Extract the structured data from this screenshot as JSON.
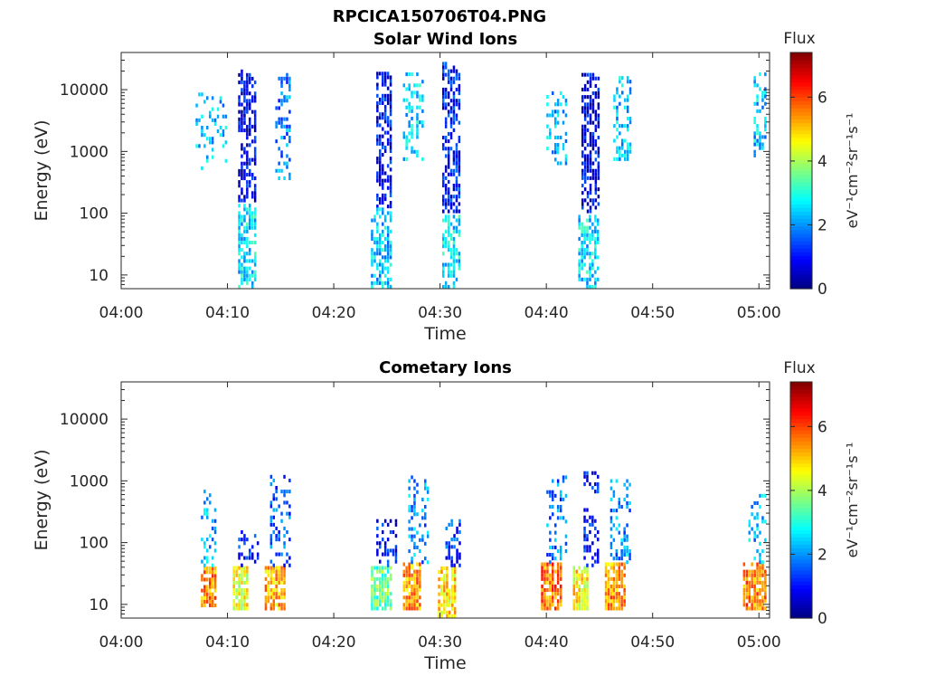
{
  "figure_title": "RPCICA150706T04.PNG",
  "colorbar": {
    "label_title": "Flux",
    "unit_label": "eV⁻¹cm⁻²sr⁻¹s⁻¹",
    "range": [
      0,
      7.4
    ],
    "ticks": [
      "0",
      "2",
      "4",
      "6"
    ],
    "colormap": "jet"
  },
  "chart_data": [
    {
      "type": "heatmap",
      "title": "Solar Wind Ions",
      "xlabel": "Time",
      "ylabel": "Energy (eV)",
      "x_ticks": [
        "04:00",
        "04:10",
        "04:20",
        "04:30",
        "04:40",
        "04:50",
        "05:00"
      ],
      "xlim": [
        "04:00",
        "05:01"
      ],
      "y_scale": "log",
      "y_ticks": [
        "10",
        "100",
        "1000",
        "10000"
      ],
      "ylim": [
        6,
        40000
      ],
      "clusters": [
        {
          "t0": "04:07",
          "t1": "04:10",
          "emin": 500,
          "emax": 9000,
          "flux": 2.3,
          "density": 0.25
        },
        {
          "t0": "04:11",
          "t1": "04:12.7",
          "emin": 150,
          "emax": 20000,
          "flux": 0.8,
          "density": 0.55
        },
        {
          "t0": "04:11",
          "t1": "04:12.7",
          "emin": 6,
          "emax": 150,
          "flux": 2.6,
          "density": 0.6
        },
        {
          "t0": "04:14.5",
          "t1": "04:16",
          "emin": 300,
          "emax": 18000,
          "flux": 1.8,
          "density": 0.35
        },
        {
          "t0": "04:24",
          "t1": "04:25.5",
          "emin": 120,
          "emax": 20000,
          "flux": 0.9,
          "density": 0.6
        },
        {
          "t0": "04:23.5",
          "t1": "04:25.5",
          "emin": 6,
          "emax": 120,
          "flux": 2.4,
          "density": 0.6
        },
        {
          "t0": "04:26.5",
          "t1": "04:28.5",
          "emin": 700,
          "emax": 18000,
          "flux": 2.5,
          "density": 0.35
        },
        {
          "t0": "04:30.2",
          "t1": "04:32",
          "emin": 100,
          "emax": 30000,
          "flux": 1.0,
          "density": 0.6
        },
        {
          "t0": "04:30.2",
          "t1": "04:32",
          "emin": 6,
          "emax": 100,
          "flux": 2.6,
          "density": 0.6
        },
        {
          "t0": "04:40",
          "t1": "04:42",
          "emin": 600,
          "emax": 9000,
          "flux": 2.2,
          "density": 0.3
        },
        {
          "t0": "04:43.3",
          "t1": "04:45",
          "emin": 100,
          "emax": 18000,
          "flux": 0.8,
          "density": 0.6
        },
        {
          "t0": "04:43",
          "t1": "04:45",
          "emin": 6,
          "emax": 100,
          "flux": 2.5,
          "density": 0.6
        },
        {
          "t0": "04:46.3",
          "t1": "04:48",
          "emin": 700,
          "emax": 16000,
          "flux": 2.3,
          "density": 0.35
        },
        {
          "t0": "04:59.5",
          "t1": "05:00.8",
          "emin": 700,
          "emax": 18000,
          "flux": 2.4,
          "density": 0.35
        }
      ]
    },
    {
      "type": "heatmap",
      "title": "Cometary Ions",
      "xlabel": "Time",
      "ylabel": "Energy (eV)",
      "x_ticks": [
        "04:00",
        "04:10",
        "04:20",
        "04:30",
        "04:40",
        "04:50",
        "05:00"
      ],
      "xlim": [
        "04:00",
        "05:01"
      ],
      "y_scale": "log",
      "y_ticks": [
        "10",
        "100",
        "1000",
        "10000"
      ],
      "ylim": [
        6,
        40000
      ],
      "clusters": [
        {
          "t0": "04:07.5",
          "t1": "04:09",
          "emin": 9,
          "emax": 40,
          "flux": 5.5,
          "density": 0.8
        },
        {
          "t0": "04:07.5",
          "t1": "04:09",
          "emin": 40,
          "emax": 700,
          "flux": 2.2,
          "density": 0.25
        },
        {
          "t0": "04:10.5",
          "t1": "04:12",
          "emin": 8,
          "emax": 40,
          "flux": 4.5,
          "density": 0.8
        },
        {
          "t0": "04:11",
          "t1": "04:13",
          "emin": 40,
          "emax": 150,
          "flux": 1.2,
          "density": 0.4
        },
        {
          "t0": "04:13.5",
          "t1": "04:15.5",
          "emin": 8,
          "emax": 40,
          "flux": 5.2,
          "density": 0.8
        },
        {
          "t0": "04:14",
          "t1": "04:16",
          "emin": 40,
          "emax": 1300,
          "flux": 1.5,
          "density": 0.3
        },
        {
          "t0": "04:23.5",
          "t1": "04:25.5",
          "emin": 8,
          "emax": 40,
          "flux": 3.5,
          "density": 0.8
        },
        {
          "t0": "04:24",
          "t1": "04:26",
          "emin": 40,
          "emax": 250,
          "flux": 1.0,
          "density": 0.35
        },
        {
          "t0": "04:26.5",
          "t1": "04:28.3",
          "emin": 8,
          "emax": 45,
          "flux": 5.3,
          "density": 0.8
        },
        {
          "t0": "04:27",
          "t1": "04:29",
          "emin": 45,
          "emax": 1300,
          "flux": 2.0,
          "density": 0.3
        },
        {
          "t0": "04:29.8",
          "t1": "04:31.5",
          "emin": 6,
          "emax": 40,
          "flux": 4.8,
          "density": 0.8
        },
        {
          "t0": "04:30.5",
          "t1": "04:32",
          "emin": 40,
          "emax": 250,
          "flux": 1.3,
          "density": 0.35
        },
        {
          "t0": "04:39.5",
          "t1": "04:41.5",
          "emin": 8,
          "emax": 45,
          "flux": 5.6,
          "density": 0.8
        },
        {
          "t0": "04:40",
          "t1": "04:42",
          "emin": 45,
          "emax": 1200,
          "flux": 1.8,
          "density": 0.3
        },
        {
          "t0": "04:42.5",
          "t1": "04:44",
          "emin": 8,
          "emax": 40,
          "flux": 4.7,
          "density": 0.8
        },
        {
          "t0": "04:43.5",
          "t1": "04:45",
          "emin": 40,
          "emax": 1400,
          "flux": 1.0,
          "density": 0.3
        },
        {
          "t0": "04:45.5",
          "t1": "04:47.5",
          "emin": 8,
          "emax": 45,
          "flux": 5.4,
          "density": 0.8
        },
        {
          "t0": "04:46",
          "t1": "04:48",
          "emin": 45,
          "emax": 1000,
          "flux": 2.0,
          "density": 0.3
        },
        {
          "t0": "04:58.5",
          "t1": "05:00.8",
          "emin": 8,
          "emax": 45,
          "flux": 5.5,
          "density": 0.8
        },
        {
          "t0": "04:59",
          "t1": "05:00.8",
          "emin": 45,
          "emax": 600,
          "flux": 2.2,
          "density": 0.3
        }
      ]
    }
  ]
}
